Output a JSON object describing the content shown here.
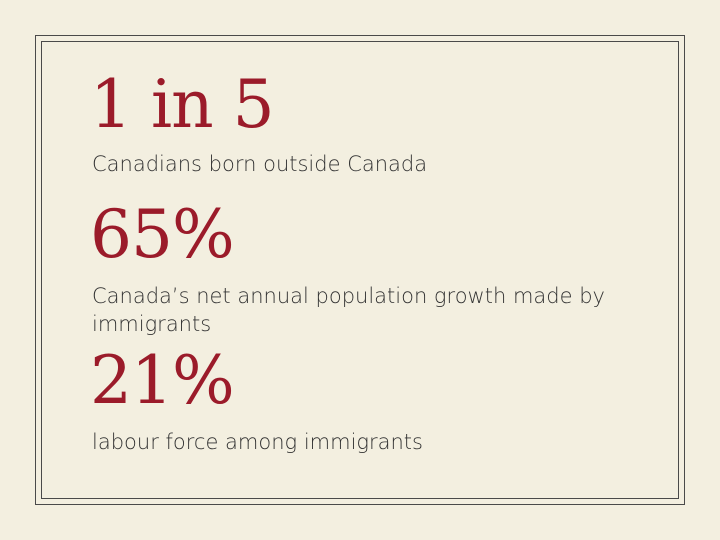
{
  "stats": [
    {
      "figure": "1 in 5",
      "text": "Canadians born outside Canada"
    },
    {
      "figure": "65%",
      "text": "Canada’s net annual population growth made by immigrants"
    },
    {
      "figure": "21%",
      "text": "labour force among immigrants"
    }
  ]
}
